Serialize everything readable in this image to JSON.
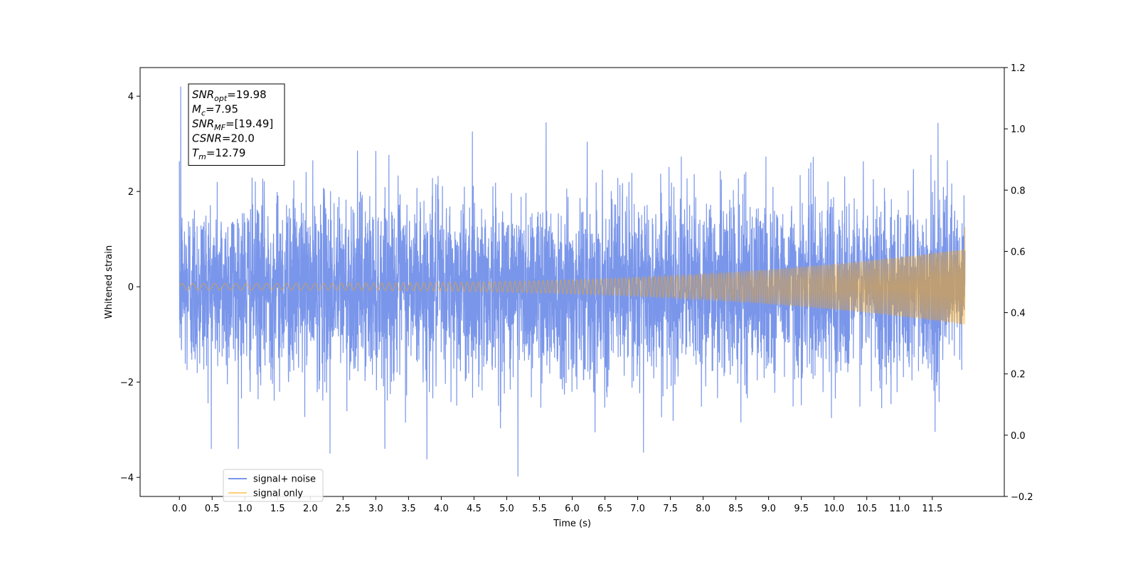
{
  "chart_data": {
    "type": "line",
    "title": "",
    "xlabel": "Time (s)",
    "ylabel": "Whitened strain",
    "xlim": [
      -0.6,
      12.6
    ],
    "ylim": [
      -4.4,
      4.6
    ],
    "ylim_right": [
      -0.2,
      1.2
    ],
    "x_ticks": [
      0.0,
      0.5,
      1.0,
      1.5,
      2.0,
      2.5,
      3.0,
      3.5,
      4.0,
      4.5,
      5.0,
      5.5,
      6.0,
      6.5,
      7.0,
      7.5,
      8.0,
      8.5,
      9.0,
      9.5,
      10.0,
      10.5,
      11.0,
      11.5
    ],
    "x_tick_labels": [
      "0.0",
      "0.5",
      "1.0",
      "1.5",
      "2.0",
      "2.5",
      "3.0",
      "3.5",
      "4.0",
      "4.5",
      "5.0",
      "5.5",
      "6.0",
      "6.5",
      "7.0",
      "7.5",
      "8.0",
      "8.5",
      "9.0",
      "9.5",
      "10.0",
      "10.5",
      "11.0",
      "11.5"
    ],
    "y_ticks": [
      -4,
      -2,
      0,
      2,
      4
    ],
    "y_tick_labels": [
      "−4",
      "−2",
      "0",
      "2",
      "4"
    ],
    "y_ticks_right": [
      -0.2,
      0.0,
      0.2,
      0.4,
      0.6,
      0.8,
      1.0,
      1.2
    ],
    "y_tick_labels_right": [
      "−0.2",
      "0.0",
      "0.2",
      "0.4",
      "0.6",
      "0.8",
      "1.0",
      "1.2"
    ],
    "grid": false,
    "legend_position": "lower-left",
    "series": [
      {
        "name": "signal+ noise",
        "color": "#4169e1",
        "t_start": 0.0,
        "t_end": 12.0,
        "noise_envelope": {
          "typical_peak": 2.0,
          "max": 4.2,
          "min": -4.0
        },
        "notable_peaks": [
          {
            "x": 0.02,
            "y": 4.2
          },
          {
            "x": 3.78,
            "y": 3.75
          },
          {
            "x": 5.17,
            "y": -3.98
          },
          {
            "x": 3.78,
            "y": -3.62
          },
          {
            "x": 2.3,
            "y": -3.5
          },
          {
            "x": 7.09,
            "y": -3.48
          },
          {
            "x": 5.6,
            "y": 3.45
          }
        ]
      },
      {
        "name": "signal only",
        "color": "#ffa500",
        "t_start": 0.0,
        "t_end": 12.0,
        "amplitude_start": 0.07,
        "amplitude_end": 0.8,
        "end_spike": 1.25
      }
    ],
    "annotation": {
      "lines": [
        {
          "main": "SNR",
          "sub": "opt",
          "value": "=19.98"
        },
        {
          "main": "M",
          "sub": "c",
          "value": "=7.95"
        },
        {
          "main": "SNR",
          "sub": "MF",
          "value": "=[19.49]"
        },
        {
          "main": "CSNR",
          "sub": "",
          "value": "=20.0"
        },
        {
          "main": "T",
          "sub": "m",
          "value": "=12.79"
        }
      ]
    }
  }
}
